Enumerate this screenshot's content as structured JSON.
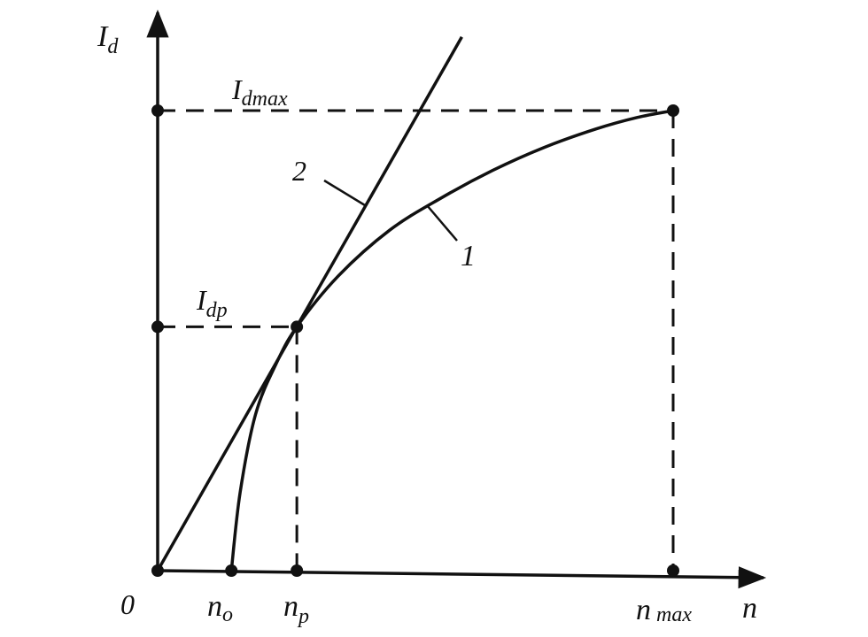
{
  "chart_data": {
    "type": "line",
    "title": "",
    "origin_label": "0",
    "y_axis_label": {
      "main": "I",
      "sub": "d"
    },
    "x_axis_label": "n",
    "y_tick_labels": [
      {
        "main": "I",
        "sub": "dmax"
      },
      {
        "main": "I",
        "sub": "dp"
      }
    ],
    "x_tick_labels": [
      {
        "main": "n",
        "sub": "o"
      },
      {
        "main": "n",
        "sub": "p"
      },
      {
        "main": "n",
        "sub": "max"
      }
    ],
    "curve_labels": [
      "1",
      "2"
    ],
    "x_unit_positions": {
      "n_o": 0.143,
      "n_p": 0.27,
      "n_max": 1.0
    },
    "y_unit_positions": {
      "I_dp": 0.53,
      "I_dmax": 1.0
    },
    "series": [
      {
        "name": "1",
        "x": [
          0.143,
          0.16,
          0.19,
          0.23,
          0.27,
          0.35,
          0.45,
          0.55,
          0.65,
          0.75,
          0.85,
          0.93,
          1.0
        ],
        "y": [
          0.0,
          0.17,
          0.34,
          0.45,
          0.53,
          0.64,
          0.74,
          0.81,
          0.87,
          0.92,
          0.96,
          0.985,
          1.0
        ]
      },
      {
        "name": "2",
        "x": [
          0.0,
          0.59
        ],
        "y": [
          0.0,
          1.16
        ]
      }
    ],
    "colors": {
      "ink": "#111111",
      "background": "#ffffff"
    }
  }
}
